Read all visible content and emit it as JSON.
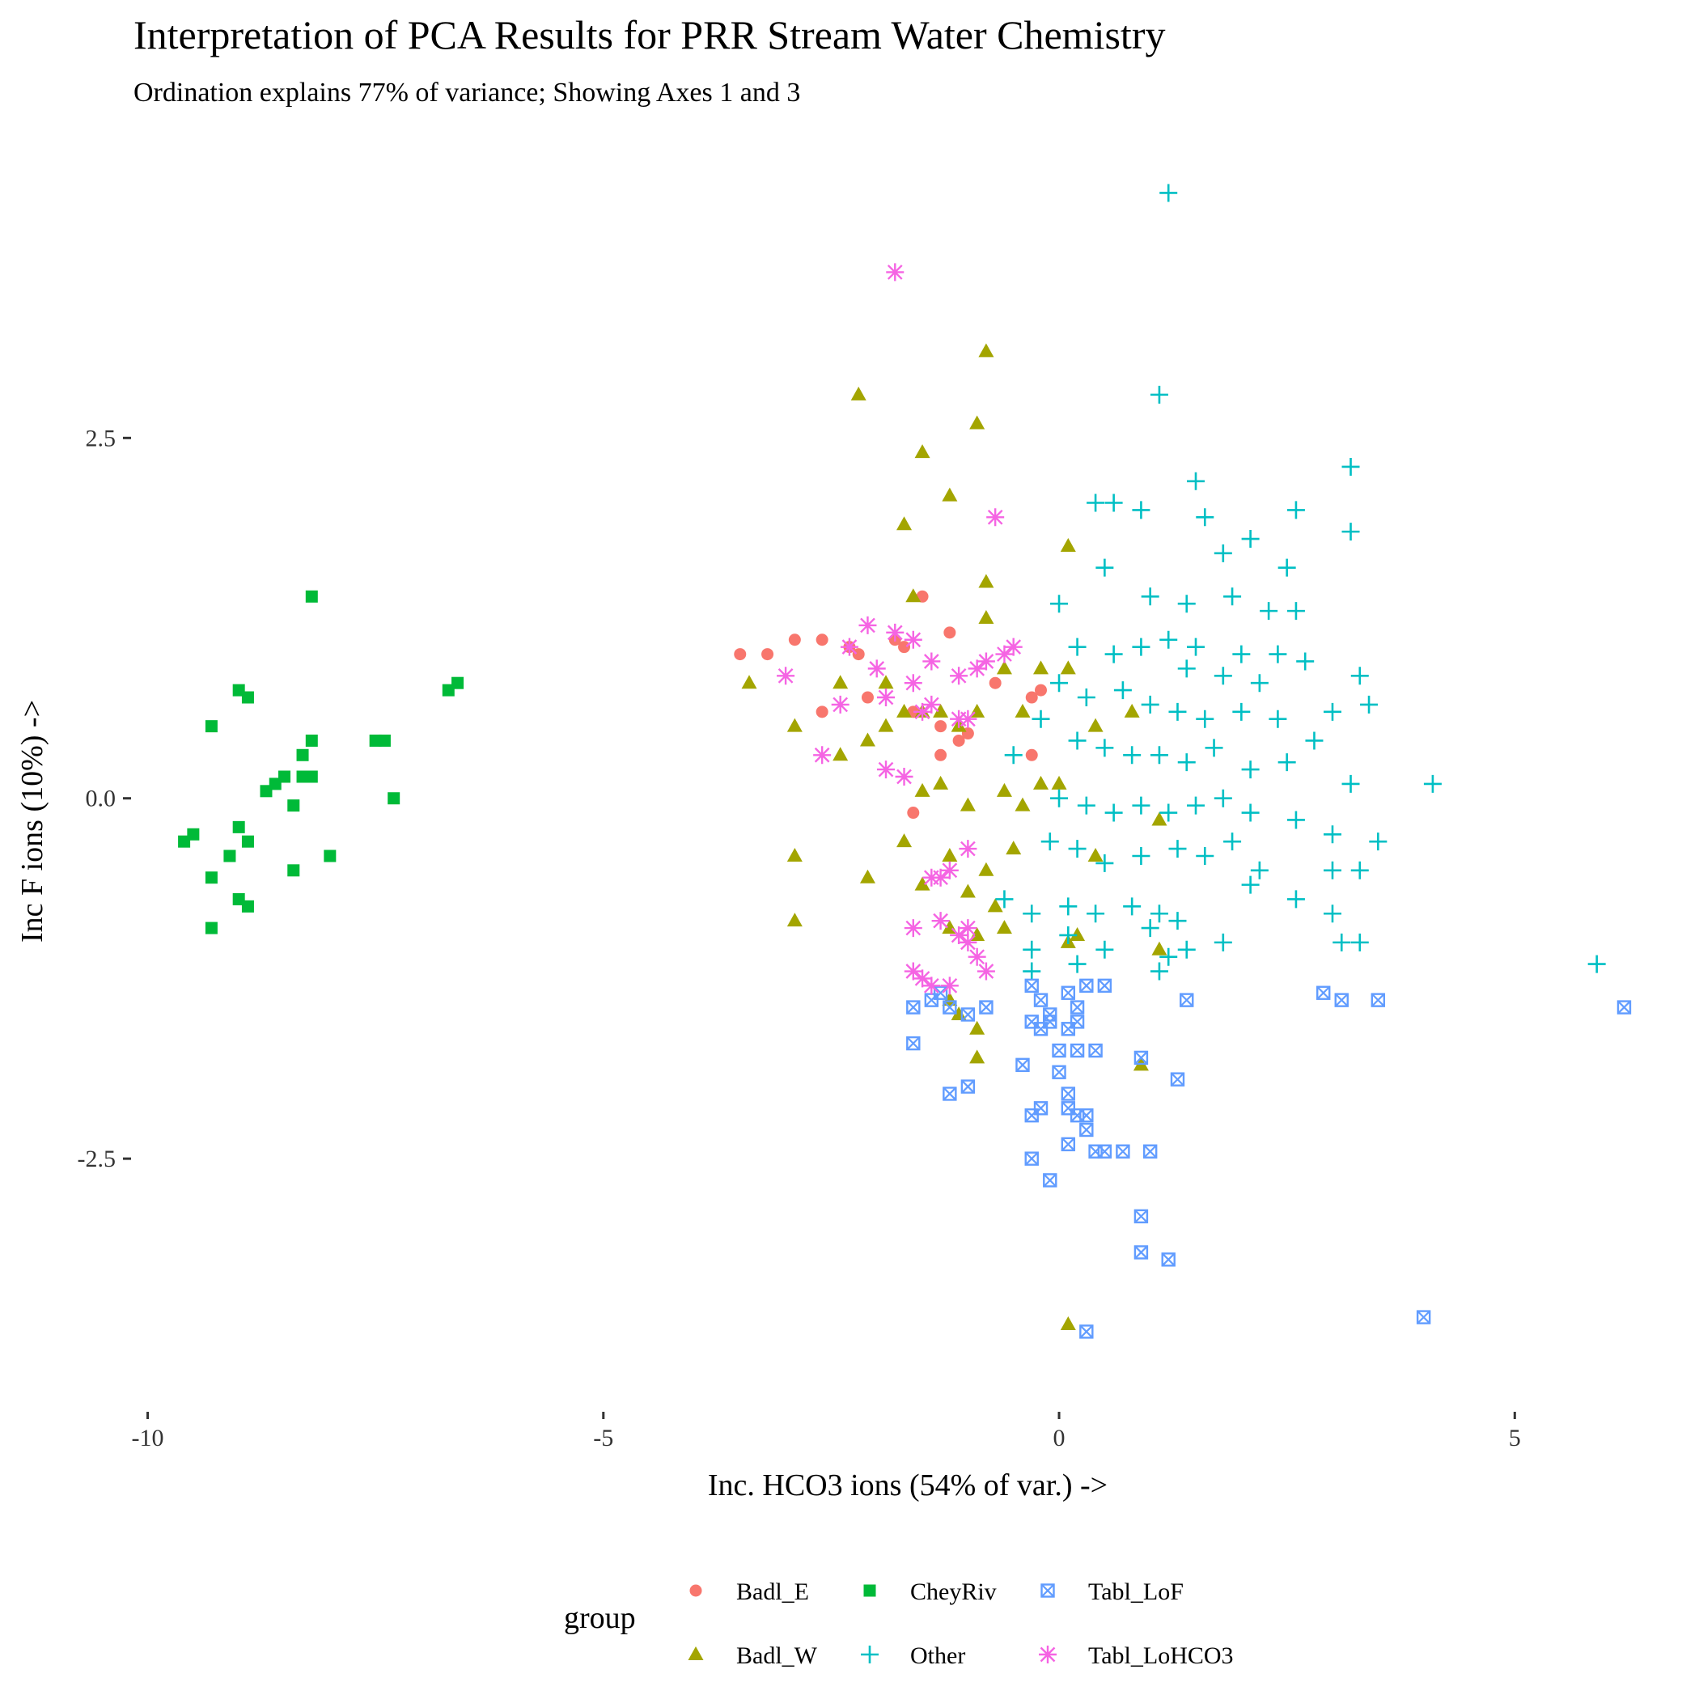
{
  "chart_data": {
    "type": "scatter",
    "title": "Interpretation of PCA Results for PRR Stream Water Chemistry",
    "subtitle": "Ordination explains 77% of variance; Showing Axes 1 and 3",
    "xlabel": "Inc. HCO3 ions (54% of var.) ->",
    "ylabel": "Inc F ions (10%) ->",
    "xlim": [
      -10.2,
      6.4
    ],
    "ylim": [
      -4.2,
      4.5
    ],
    "x_ticks": [
      -10,
      -5,
      0,
      5
    ],
    "x_tick_labels": [
      "-10",
      "-5",
      "0",
      "5"
    ],
    "y_ticks": [
      2.5,
      0.0,
      -2.5
    ],
    "y_tick_labels": [
      "2.5",
      "0.0",
      "-2.5"
    ],
    "grid": false,
    "legend": {
      "title": "group",
      "position": "bottom"
    },
    "series": [
      {
        "name": "Badl_E",
        "color": "#F8766D",
        "shape": "circle",
        "points": [
          [
            -3.5,
            1.0
          ],
          [
            -3.2,
            1.0
          ],
          [
            -2.9,
            1.1
          ],
          [
            -2.6,
            1.1
          ],
          [
            -2.3,
            1.05
          ],
          [
            -2.2,
            1.0
          ],
          [
            -1.8,
            1.1
          ],
          [
            -1.7,
            1.05
          ],
          [
            -1.5,
            1.4
          ],
          [
            -1.2,
            1.15
          ],
          [
            -2.6,
            0.6
          ],
          [
            -2.1,
            0.7
          ],
          [
            -1.6,
            0.6
          ],
          [
            -1.3,
            0.5
          ],
          [
            -1.1,
            0.4
          ],
          [
            -1.0,
            0.45
          ],
          [
            -0.7,
            0.8
          ],
          [
            -0.3,
            0.7
          ],
          [
            -0.2,
            0.75
          ],
          [
            -0.3,
            0.3
          ],
          [
            -1.6,
            -0.1
          ],
          [
            -1.3,
            0.3
          ]
        ]
      },
      {
        "name": "Badl_W",
        "color": "#A3A500",
        "shape": "triangle",
        "points": [
          [
            -0.8,
            3.1
          ],
          [
            -2.2,
            2.8
          ],
          [
            -0.9,
            2.6
          ],
          [
            -1.5,
            2.4
          ],
          [
            -1.2,
            2.1
          ],
          [
            -1.7,
            1.9
          ],
          [
            -0.8,
            1.5
          ],
          [
            -1.6,
            1.4
          ],
          [
            -0.8,
            1.25
          ],
          [
            0.1,
            1.75
          ],
          [
            -3.4,
            0.8
          ],
          [
            -2.9,
            0.5
          ],
          [
            -2.4,
            0.8
          ],
          [
            -2.4,
            0.3
          ],
          [
            -2.1,
            0.4
          ],
          [
            -1.9,
            0.5
          ],
          [
            -1.7,
            0.6
          ],
          [
            -1.5,
            0.6
          ],
          [
            -1.3,
            0.6
          ],
          [
            -1.1,
            0.5
          ],
          [
            -0.9,
            0.6
          ],
          [
            -0.6,
            0.9
          ],
          [
            -0.4,
            0.6
          ],
          [
            -0.2,
            0.9
          ],
          [
            0.1,
            0.9
          ],
          [
            -1.9,
            0.8
          ],
          [
            -1.5,
            0.05
          ],
          [
            -1.3,
            0.1
          ],
          [
            -1.0,
            -0.05
          ],
          [
            -0.6,
            0.05
          ],
          [
            -0.4,
            -0.05
          ],
          [
            -0.2,
            0.1
          ],
          [
            0.0,
            0.1
          ],
          [
            -1.7,
            -0.3
          ],
          [
            -1.2,
            -0.4
          ],
          [
            -0.8,
            -0.5
          ],
          [
            -0.5,
            -0.35
          ],
          [
            -2.9,
            -0.4
          ],
          [
            -2.1,
            -0.55
          ],
          [
            -1.5,
            -0.6
          ],
          [
            -1.0,
            -0.65
          ],
          [
            -0.7,
            -0.75
          ],
          [
            -2.9,
            -0.85
          ],
          [
            -1.2,
            -0.9
          ],
          [
            -0.9,
            -0.95
          ],
          [
            -0.6,
            -0.9
          ],
          [
            0.1,
            -1.0
          ],
          [
            0.2,
            -0.95
          ],
          [
            1.1,
            -1.05
          ],
          [
            -1.2,
            -1.4
          ],
          [
            -1.1,
            -1.5
          ],
          [
            -0.9,
            -1.6
          ],
          [
            -0.9,
            -1.8
          ],
          [
            0.9,
            -1.85
          ],
          [
            0.1,
            -3.65
          ],
          [
            0.4,
            0.5
          ],
          [
            1.1,
            -0.15
          ],
          [
            0.8,
            0.6
          ],
          [
            0.4,
            -0.4
          ]
        ]
      },
      {
        "name": "CheyRiv",
        "color": "#00BA38",
        "shape": "square",
        "points": [
          [
            -8.2,
            1.4
          ],
          [
            -9.3,
            0.5
          ],
          [
            -9.0,
            0.75
          ],
          [
            -8.9,
            0.7
          ],
          [
            -6.7,
            0.75
          ],
          [
            -6.6,
            0.8
          ],
          [
            -8.3,
            0.3
          ],
          [
            -8.2,
            0.4
          ],
          [
            -7.5,
            0.4
          ],
          [
            -7.4,
            0.4
          ],
          [
            -8.5,
            0.15
          ],
          [
            -8.2,
            0.15
          ],
          [
            -8.3,
            0.15
          ],
          [
            -8.7,
            0.05
          ],
          [
            -8.6,
            0.1
          ],
          [
            -8.4,
            -0.05
          ],
          [
            -7.3,
            0.0
          ],
          [
            -9.6,
            -0.3
          ],
          [
            -9.5,
            -0.25
          ],
          [
            -9.0,
            -0.2
          ],
          [
            -9.1,
            -0.4
          ],
          [
            -8.9,
            -0.3
          ],
          [
            -8.0,
            -0.4
          ],
          [
            -9.3,
            -0.55
          ],
          [
            -8.4,
            -0.5
          ],
          [
            -9.0,
            -0.7
          ],
          [
            -8.9,
            -0.75
          ],
          [
            -9.3,
            -0.9
          ]
        ]
      },
      {
        "name": "Other",
        "color": "#00BFC4",
        "shape": "plus",
        "points": [
          [
            1.2,
            4.2
          ],
          [
            1.1,
            2.8
          ],
          [
            1.5,
            2.2
          ],
          [
            3.2,
            2.3
          ],
          [
            0.4,
            2.05
          ],
          [
            0.6,
            2.05
          ],
          [
            0.9,
            2.0
          ],
          [
            1.6,
            1.95
          ],
          [
            2.6,
            2.0
          ],
          [
            3.2,
            1.85
          ],
          [
            0.5,
            1.6
          ],
          [
            1.8,
            1.7
          ],
          [
            2.5,
            1.6
          ],
          [
            2.1,
            1.8
          ],
          [
            0.0,
            1.35
          ],
          [
            1.0,
            1.4
          ],
          [
            1.4,
            1.35
          ],
          [
            1.9,
            1.4
          ],
          [
            2.3,
            1.3
          ],
          [
            2.6,
            1.3
          ],
          [
            0.9,
            1.05
          ],
          [
            1.2,
            1.1
          ],
          [
            1.5,
            1.05
          ],
          [
            2.0,
            1.0
          ],
          [
            2.4,
            1.0
          ],
          [
            2.7,
            0.95
          ],
          [
            0.2,
            1.05
          ],
          [
            0.6,
            1.0
          ],
          [
            1.4,
            0.9
          ],
          [
            1.8,
            0.85
          ],
          [
            2.2,
            0.8
          ],
          [
            3.3,
            0.85
          ],
          [
            3.4,
            0.65
          ],
          [
            0.0,
            0.8
          ],
          [
            0.3,
            0.7
          ],
          [
            0.7,
            0.75
          ],
          [
            1.0,
            0.65
          ],
          [
            1.3,
            0.6
          ],
          [
            1.6,
            0.55
          ],
          [
            2.0,
            0.6
          ],
          [
            2.4,
            0.55
          ],
          [
            3.0,
            0.6
          ],
          [
            -0.5,
            0.3
          ],
          [
            -0.2,
            0.55
          ],
          [
            0.2,
            0.4
          ],
          [
            0.5,
            0.35
          ],
          [
            0.8,
            0.3
          ],
          [
            1.1,
            0.3
          ],
          [
            1.4,
            0.25
          ],
          [
            1.7,
            0.35
          ],
          [
            2.1,
            0.2
          ],
          [
            2.5,
            0.25
          ],
          [
            2.8,
            0.4
          ],
          [
            3.2,
            0.1
          ],
          [
            4.1,
            0.1
          ],
          [
            0.0,
            0.0
          ],
          [
            0.3,
            -0.05
          ],
          [
            0.6,
            -0.1
          ],
          [
            0.9,
            -0.05
          ],
          [
            1.2,
            -0.1
          ],
          [
            1.5,
            -0.05
          ],
          [
            1.8,
            0.0
          ],
          [
            2.1,
            -0.1
          ],
          [
            2.6,
            -0.15
          ],
          [
            3.0,
            -0.25
          ],
          [
            3.5,
            -0.3
          ],
          [
            -0.1,
            -0.3
          ],
          [
            0.2,
            -0.35
          ],
          [
            0.5,
            -0.45
          ],
          [
            0.9,
            -0.4
          ],
          [
            1.3,
            -0.35
          ],
          [
            1.6,
            -0.4
          ],
          [
            1.9,
            -0.3
          ],
          [
            2.2,
            -0.5
          ],
          [
            3.0,
            -0.5
          ],
          [
            3.3,
            -0.5
          ],
          [
            -0.6,
            -0.7
          ],
          [
            -0.3,
            -0.8
          ],
          [
            0.1,
            -0.75
          ],
          [
            0.4,
            -0.8
          ],
          [
            0.8,
            -0.75
          ],
          [
            1.1,
            -0.8
          ],
          [
            1.3,
            -0.85
          ],
          [
            2.1,
            -0.6
          ],
          [
            2.6,
            -0.7
          ],
          [
            3.0,
            -0.8
          ],
          [
            -0.3,
            -1.05
          ],
          [
            0.1,
            -0.95
          ],
          [
            0.5,
            -1.05
          ],
          [
            1.0,
            -0.9
          ],
          [
            1.4,
            -1.05
          ],
          [
            1.8,
            -1.0
          ],
          [
            3.1,
            -1.0
          ],
          [
            3.3,
            -1.0
          ],
          [
            5.9,
            -1.15
          ],
          [
            -0.3,
            -1.2
          ],
          [
            0.2,
            -1.15
          ],
          [
            1.1,
            -1.2
          ],
          [
            1.2,
            -1.1
          ]
        ]
      },
      {
        "name": "Tabl_LoF",
        "color": "#619CFF",
        "shape": "square-x",
        "points": [
          [
            -1.6,
            -1.45
          ],
          [
            -1.4,
            -1.4
          ],
          [
            -1.3,
            -1.35
          ],
          [
            -1.2,
            -1.45
          ],
          [
            -1.0,
            -1.5
          ],
          [
            -0.8,
            -1.45
          ],
          [
            -0.3,
            -1.3
          ],
          [
            -0.2,
            -1.4
          ],
          [
            -0.1,
            -1.55
          ],
          [
            0.1,
            -1.35
          ],
          [
            0.2,
            -1.45
          ],
          [
            0.3,
            -1.3
          ],
          [
            0.5,
            -1.3
          ],
          [
            1.4,
            -1.4
          ],
          [
            2.9,
            -1.35
          ],
          [
            3.1,
            -1.4
          ],
          [
            3.5,
            -1.4
          ],
          [
            6.2,
            -1.45
          ],
          [
            -1.6,
            -1.7
          ],
          [
            -0.3,
            -1.55
          ],
          [
            -0.2,
            -1.6
          ],
          [
            -0.1,
            -1.5
          ],
          [
            0.1,
            -1.6
          ],
          [
            0.2,
            -1.55
          ],
          [
            -1.2,
            -2.05
          ],
          [
            -1.0,
            -2.0
          ],
          [
            -0.4,
            -1.85
          ],
          [
            0.0,
            -1.75
          ],
          [
            0.2,
            -1.75
          ],
          [
            0.4,
            -1.75
          ],
          [
            0.9,
            -1.8
          ],
          [
            1.3,
            -1.95
          ],
          [
            0.0,
            -1.9
          ],
          [
            0.1,
            -2.05
          ],
          [
            -0.3,
            -2.2
          ],
          [
            -0.2,
            -2.15
          ],
          [
            0.1,
            -2.15
          ],
          [
            0.2,
            -2.2
          ],
          [
            0.3,
            -2.2
          ],
          [
            0.3,
            -2.3
          ],
          [
            -0.3,
            -2.5
          ],
          [
            0.1,
            -2.4
          ],
          [
            0.4,
            -2.45
          ],
          [
            0.5,
            -2.45
          ],
          [
            0.7,
            -2.45
          ],
          [
            1.0,
            -2.45
          ],
          [
            -0.1,
            -2.65
          ],
          [
            0.9,
            -2.9
          ],
          [
            0.9,
            -3.15
          ],
          [
            1.2,
            -3.2
          ],
          [
            4.0,
            -3.6
          ],
          [
            0.3,
            -3.7
          ]
        ]
      },
      {
        "name": "Tabl_LoHCO3",
        "color": "#F564E3",
        "shape": "asterisk",
        "points": [
          [
            -1.8,
            3.65
          ],
          [
            -0.7,
            1.95
          ],
          [
            -3.0,
            0.85
          ],
          [
            -2.3,
            1.05
          ],
          [
            -2.1,
            1.2
          ],
          [
            -2.0,
            0.9
          ],
          [
            -1.8,
            1.15
          ],
          [
            -1.6,
            1.1
          ],
          [
            -1.4,
            0.95
          ],
          [
            -1.1,
            0.85
          ],
          [
            -0.9,
            0.9
          ],
          [
            -0.8,
            0.95
          ],
          [
            -0.6,
            1.0
          ],
          [
            -0.5,
            1.05
          ],
          [
            -2.4,
            0.65
          ],
          [
            -1.9,
            0.7
          ],
          [
            -1.6,
            0.8
          ],
          [
            -1.4,
            0.65
          ],
          [
            -1.5,
            0.6
          ],
          [
            -1.1,
            0.55
          ],
          [
            -1.0,
            0.55
          ],
          [
            -2.6,
            0.3
          ],
          [
            -1.9,
            0.2
          ],
          [
            -1.7,
            0.15
          ],
          [
            -1.0,
            -0.35
          ],
          [
            -1.2,
            -0.5
          ],
          [
            -1.3,
            -0.55
          ],
          [
            -1.4,
            -0.55
          ],
          [
            -1.6,
            -0.9
          ],
          [
            -1.3,
            -0.85
          ],
          [
            -1.1,
            -0.95
          ],
          [
            -1.0,
            -1.0
          ],
          [
            -1.0,
            -0.9
          ],
          [
            -0.9,
            -1.1
          ],
          [
            -0.8,
            -1.2
          ],
          [
            -1.6,
            -1.2
          ],
          [
            -1.5,
            -1.25
          ],
          [
            -1.4,
            -1.3
          ],
          [
            -1.2,
            -1.3
          ]
        ]
      }
    ]
  }
}
